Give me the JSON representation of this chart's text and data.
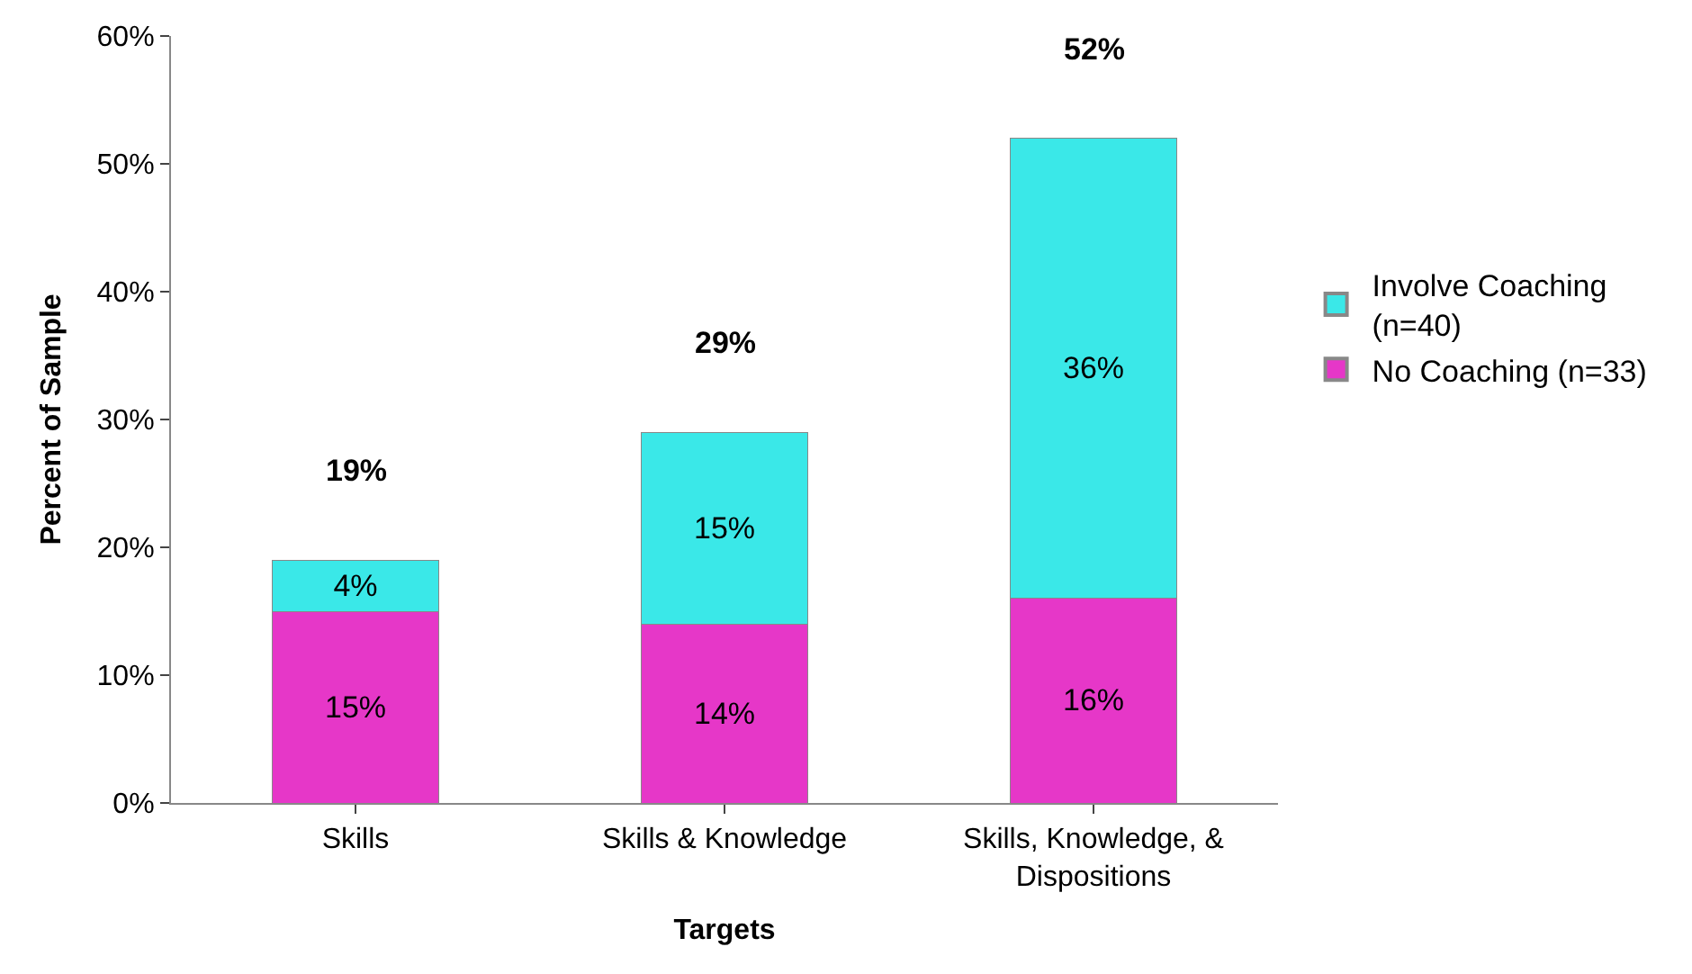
{
  "chart_data": {
    "type": "bar",
    "stacked": true,
    "xlabel": "Targets",
    "ylabel": "Percent of Sample",
    "categories": [
      "Skills",
      "Skills & Knowledge",
      "Skills, Knowledge, & Dispositions"
    ],
    "series": [
      {
        "name": "No Coaching (n=33)",
        "color": "#e637c8",
        "values": [
          15,
          14,
          16
        ],
        "value_labels": [
          "15%",
          "14%",
          "16%"
        ]
      },
      {
        "name": "Involve Coaching (n=40)",
        "color": "#3ae8e8",
        "values": [
          4,
          15,
          36
        ],
        "value_labels": [
          "4%",
          "15%",
          "36%"
        ]
      }
    ],
    "totals": [
      "19%",
      "29%",
      "52%"
    ],
    "ylim": [
      0,
      60
    ],
    "yticks": [
      {
        "value": 0,
        "label": "0%"
      },
      {
        "value": 10,
        "label": "10%"
      },
      {
        "value": 20,
        "label": "20%"
      },
      {
        "value": 30,
        "label": "30%"
      },
      {
        "value": 40,
        "label": "40%"
      },
      {
        "value": 50,
        "label": "50%"
      },
      {
        "value": 60,
        "label": "60%"
      }
    ],
    "grid": false,
    "legend": "right"
  }
}
